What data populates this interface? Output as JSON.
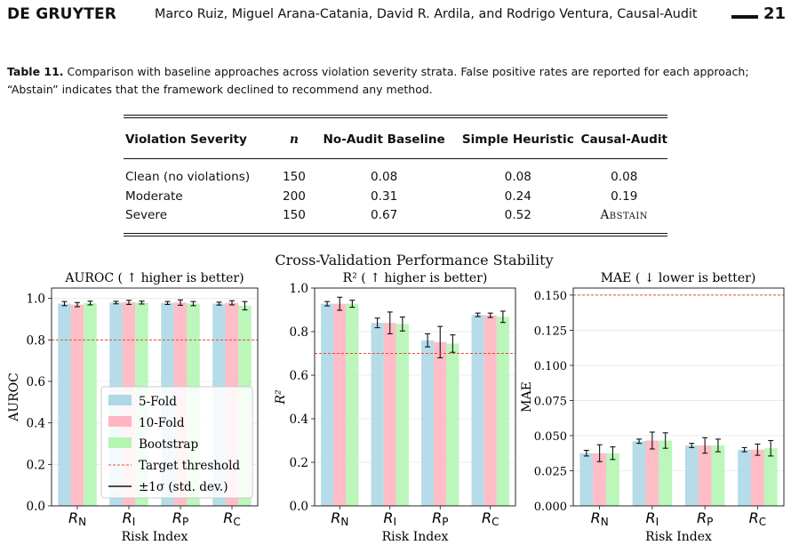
{
  "header": {
    "brand": "DE GRUYTER",
    "authors": "Marco Ruiz, Miguel Arana-Catania, David R. Ardila, and Rodrigo Ventura, Causal-Audit",
    "page_number": "21"
  },
  "table": {
    "caption_label": "Table 11.",
    "caption_text": " Comparison with baseline approaches across violation severity strata. False positive rates are reported for each approach; “Abstain” indicates that the framework declined to recommend any method.",
    "headers": [
      "Violation Severity",
      "n",
      "No-Audit Baseline",
      "Simple Heuristic",
      "Causal-Audit"
    ],
    "rows": [
      [
        "Clean (no violations)",
        "150",
        "0.08",
        "0.08",
        "0.08"
      ],
      [
        "Moderate",
        "200",
        "0.31",
        "0.24",
        "0.19"
      ],
      [
        "Severe",
        "150",
        "0.67",
        "0.52",
        "Abstain"
      ]
    ]
  },
  "figure": {
    "suptitle": "Cross-Validation Performance Stability",
    "colors": {
      "five_fold": "#add8e6",
      "ten_fold": "#ffb6c1",
      "bootstrap": "#b4f5b4",
      "threshold": "#e74c3c",
      "error_bar": "#111111"
    }
  },
  "chart_data": [
    {
      "type": "bar",
      "title": "AUROC ( ↑ higher is better)",
      "xlabel": "Risk Index",
      "ylabel": "AUROC",
      "categories": [
        "R_N",
        "R_I",
        "R_P",
        "R_C"
      ],
      "ylim": [
        0,
        1.05
      ],
      "yticks": [
        0.0,
        0.2,
        0.4,
        0.6,
        0.8,
        1.0
      ],
      "ytick_labels": [
        "0.0",
        "0.2",
        "0.4",
        "0.6",
        "0.8",
        "1.0"
      ],
      "threshold": 0.8,
      "grid": "horizontal, light",
      "legend_placement": "lower-left",
      "legend": [
        "5-Fold",
        "10-Fold",
        "Bootstrap",
        "Target threshold",
        "±1σ (std. dev.)"
      ],
      "series": [
        {
          "name": "5-Fold",
          "values": [
            0.975,
            0.98,
            0.978,
            0.975
          ],
          "errors": [
            0.01,
            0.006,
            0.007,
            0.007
          ]
        },
        {
          "name": "10-Fold",
          "values": [
            0.97,
            0.981,
            0.98,
            0.979
          ],
          "errors": [
            0.01,
            0.01,
            0.013,
            0.01
          ]
        },
        {
          "name": "Bootstrap",
          "values": [
            0.978,
            0.98,
            0.975,
            0.965
          ],
          "errors": [
            0.009,
            0.007,
            0.01,
            0.02
          ]
        }
      ]
    },
    {
      "type": "bar",
      "title": "R² ( ↑ higher is better)",
      "xlabel": "Risk Index",
      "ylabel": "R²",
      "categories": [
        "R_N",
        "R_I",
        "R_P",
        "R_C"
      ],
      "ylim": [
        0,
        1.0
      ],
      "yticks": [
        0.0,
        0.2,
        0.4,
        0.6,
        0.8,
        1.0
      ],
      "ytick_labels": [
        "0.0",
        "0.2",
        "0.4",
        "0.6",
        "0.8",
        "1.0"
      ],
      "threshold": 0.7,
      "grid": "horizontal, light",
      "series": [
        {
          "name": "5-Fold",
          "values": [
            0.928,
            0.84,
            0.76,
            0.877
          ],
          "errors": [
            0.01,
            0.022,
            0.03,
            0.008
          ]
        },
        {
          "name": "10-Fold",
          "values": [
            0.928,
            0.84,
            0.752,
            0.875
          ],
          "errors": [
            0.03,
            0.05,
            0.072,
            0.01
          ]
        },
        {
          "name": "Bootstrap",
          "values": [
            0.928,
            0.835,
            0.745,
            0.868
          ],
          "errors": [
            0.016,
            0.032,
            0.04,
            0.026
          ]
        }
      ]
    },
    {
      "type": "bar",
      "title": "MAE ( ↓ lower is better)",
      "xlabel": "Risk Index",
      "ylabel": "MAE",
      "categories": [
        "R_N",
        "R_I",
        "R_P",
        "R_C"
      ],
      "ylim": [
        0,
        0.155
      ],
      "yticks": [
        0.0,
        0.025,
        0.05,
        0.075,
        0.1,
        0.125,
        0.15
      ],
      "ytick_labels": [
        "0.000",
        "0.025",
        "0.050",
        "0.075",
        "0.100",
        "0.125",
        "0.150"
      ],
      "threshold": 0.15,
      "grid": "horizontal, light",
      "series": [
        {
          "name": "5-Fold",
          "values": [
            0.0375,
            0.046,
            0.043,
            0.04
          ],
          "errors": [
            0.002,
            0.0015,
            0.0015,
            0.0015
          ]
        },
        {
          "name": "10-Fold",
          "values": [
            0.0375,
            0.0465,
            0.043,
            0.04
          ],
          "errors": [
            0.006,
            0.006,
            0.0055,
            0.004
          ]
        },
        {
          "name": "Bootstrap",
          "values": [
            0.0375,
            0.0465,
            0.043,
            0.041
          ],
          "errors": [
            0.0045,
            0.0055,
            0.0045,
            0.0055
          ]
        }
      ]
    }
  ]
}
